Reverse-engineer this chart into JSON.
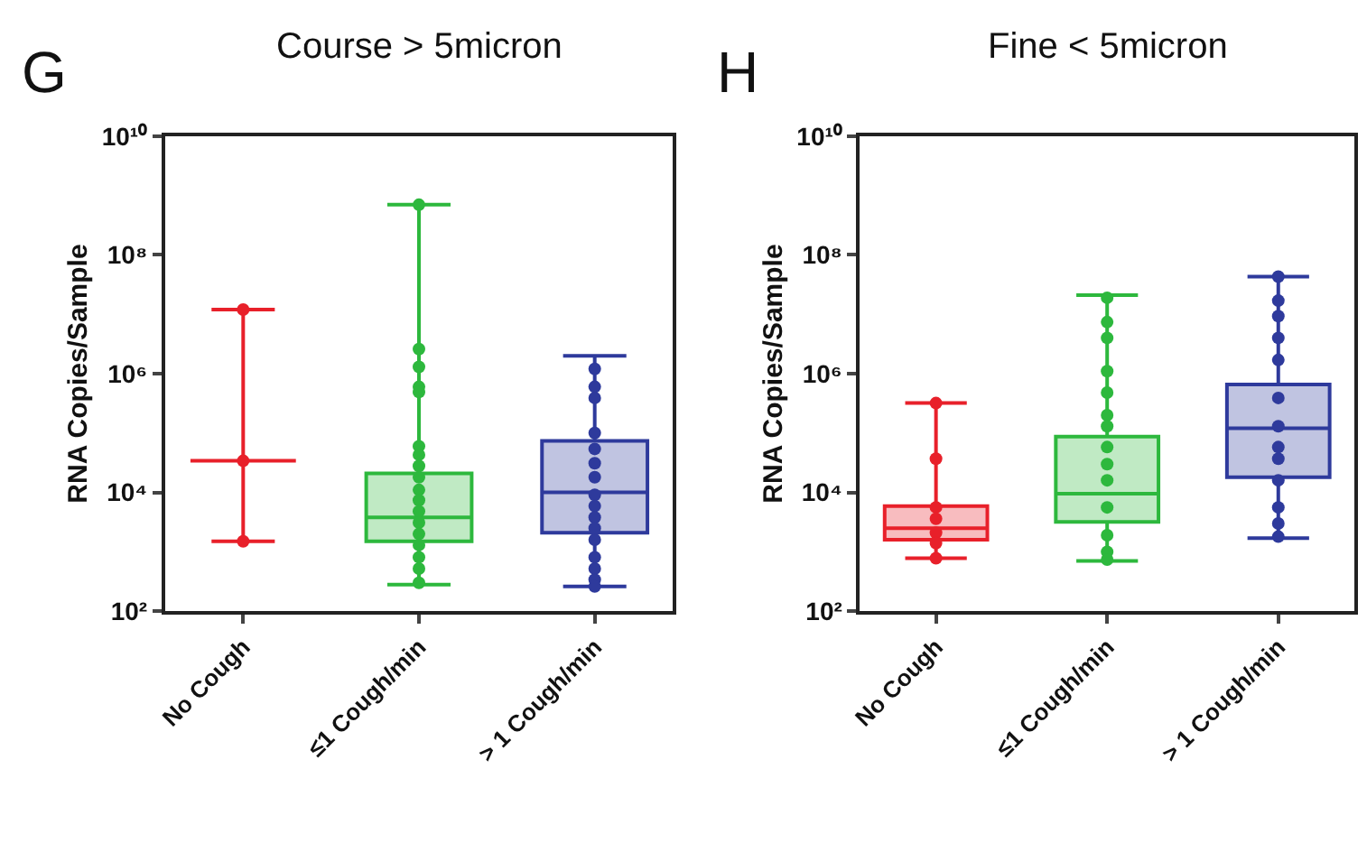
{
  "chart_data": [
    {
      "type": "box",
      "title": "Course > 5micron",
      "ylabel": "RNA Copies/Sample",
      "annotations": [
        "G"
      ],
      "categories": [
        "No Cough",
        "≤1 Cough/min",
        "> 1 Cough/min"
      ],
      "log": true,
      "ylim": [
        100,
        10000000000
      ],
      "yticks": [
        {
          "value": 100,
          "label": "10²"
        },
        {
          "value": 10000,
          "label": "10⁴"
        },
        {
          "value": 1000000,
          "label": "10⁶"
        },
        {
          "value": 100000000,
          "label": "10⁸"
        },
        {
          "value": 10000000000,
          "label": "10¹⁰"
        }
      ],
      "marker": "circle",
      "colors": [
        "#e8202a",
        "#2db83d",
        "#2e3a9c"
      ],
      "boxes": [
        {
          "low": 1500,
          "q1": 34000,
          "median": 34000,
          "q3": 34000,
          "high": 12000000
        },
        {
          "low": 280,
          "q1": 1500,
          "median": 3800,
          "q3": 21000,
          "high": 700000000
        },
        {
          "low": 260,
          "q1": 2100,
          "median": 10000,
          "q3": 74000,
          "high": 2000000
        }
      ],
      "series": [
        {
          "type": "scatter",
          "color": "#e8202a",
          "x": [
            "No Cough",
            "No Cough",
            "No Cough"
          ],
          "values": [
            12000000,
            34000,
            1500
          ]
        },
        {
          "type": "scatter",
          "color": "#2db83d",
          "x": [
            "≤1 Cough/min",
            "≤1 Cough/min",
            "≤1 Cough/min",
            "≤1 Cough/min",
            "≤1 Cough/min",
            "≤1 Cough/min",
            "≤1 Cough/min",
            "≤1 Cough/min",
            "≤1 Cough/min",
            "≤1 Cough/min",
            "≤1 Cough/min",
            "≤1 Cough/min",
            "≤1 Cough/min",
            "≤1 Cough/min",
            "≤1 Cough/min",
            "≤1 Cough/min",
            "≤1 Cough/min",
            "≤1 Cough/min"
          ],
          "values": [
            700000000,
            2600000,
            1300000,
            600000,
            490000,
            60000,
            43000,
            28000,
            18000,
            11000,
            7400,
            4800,
            3100,
            2000,
            1300,
            810,
            520,
            300
          ]
        },
        {
          "type": "scatter",
          "color": "#2e3a9c",
          "x": [
            "> 1 Cough/min",
            "> 1 Cough/min",
            "> 1 Cough/min",
            "> 1 Cough/min",
            "> 1 Cough/min",
            "> 1 Cough/min",
            "> 1 Cough/min",
            "> 1 Cough/min",
            "> 1 Cough/min",
            "> 1 Cough/min",
            "> 1 Cough/min",
            "> 1 Cough/min",
            "> 1 Cough/min",
            "> 1 Cough/min",
            "> 1 Cough/min",
            "> 1 Cough/min"
          ],
          "values": [
            1200000,
            600000,
            390000,
            100000,
            54000,
            31000,
            18000,
            9100,
            5900,
            3800,
            2500,
            1600,
            810,
            520,
            340,
            260
          ]
        }
      ]
    },
    {
      "type": "box",
      "title": "Fine < 5micron",
      "ylabel": "RNA Copies/Sample",
      "annotations": [
        "H"
      ],
      "categories": [
        "No Cough",
        "≤1 Cough/min",
        "> 1 Cough/min"
      ],
      "log": true,
      "ylim": [
        100,
        10000000000
      ],
      "yticks": [
        {
          "value": 100,
          "label": "10²"
        },
        {
          "value": 10000,
          "label": "10⁴"
        },
        {
          "value": 1000000,
          "label": "10⁶"
        },
        {
          "value": 100000000,
          "label": "10⁸"
        },
        {
          "value": 10000000000,
          "label": "10¹⁰"
        }
      ],
      "marker": "circle",
      "colors": [
        "#e8202a",
        "#2db83d",
        "#2e3a9c"
      ],
      "boxes": [
        {
          "low": 780,
          "q1": 1600,
          "median": 2500,
          "q3": 5900,
          "high": 320000
        },
        {
          "low": 700,
          "q1": 3200,
          "median": 9500,
          "q3": 87000,
          "high": 21000000
        },
        {
          "low": 1700,
          "q1": 18000,
          "median": 120000,
          "q3": 660000,
          "high": 43000000
        }
      ],
      "series": [
        {
          "type": "scatter",
          "color": "#e8202a",
          "x": [
            "No Cough",
            "No Cough",
            "No Cough",
            "No Cough",
            "No Cough",
            "No Cough",
            "No Cough"
          ],
          "values": [
            320000,
            37000,
            5600,
            3600,
            2100,
            1400,
            780
          ]
        },
        {
          "type": "scatter",
          "color": "#2db83d",
          "x": [
            "≤1 Cough/min",
            "≤1 Cough/min",
            "≤1 Cough/min",
            "≤1 Cough/min",
            "≤1 Cough/min",
            "≤1 Cough/min",
            "≤1 Cough/min",
            "≤1 Cough/min",
            "≤1 Cough/min",
            "≤1 Cough/min",
            "≤1 Cough/min",
            "≤1 Cough/min",
            "≤1 Cough/min",
            "≤1 Cough/min"
          ],
          "values": [
            19000000,
            7400000,
            4000000,
            1100000,
            480000,
            200000,
            130000,
            58000,
            30000,
            16000,
            5600,
            1900,
            1000,
            740
          ]
        },
        {
          "type": "scatter",
          "color": "#2e3a9c",
          "x": [
            "> 1 Cough/min",
            "> 1 Cough/min",
            "> 1 Cough/min",
            "> 1 Cough/min",
            "> 1 Cough/min",
            "> 1 Cough/min",
            "> 1 Cough/min",
            "> 1 Cough/min",
            "> 1 Cough/min",
            "> 1 Cough/min",
            "> 1 Cough/min",
            "> 1 Cough/min",
            "> 1 Cough/min"
          ],
          "values": [
            43000000,
            17000000,
            9300000,
            4000000,
            1700000,
            390000,
            130000,
            58000,
            37000,
            16000,
            5600,
            3000,
            1800
          ]
        }
      ]
    }
  ]
}
